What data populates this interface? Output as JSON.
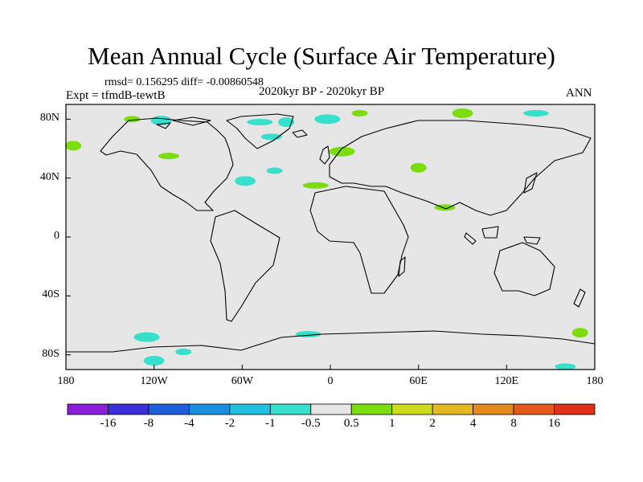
{
  "header": {
    "title": "Mean Annual Cycle (Surface Air Temperature)",
    "stats": "rmsd= 0.156295 diff= -0.00860548",
    "expt": "Expt = tfmdB-tewtB",
    "period": "2020kyr BP - 2020kyr BP",
    "season": "ANN"
  },
  "chart_data": {
    "type": "heatmap",
    "title": "Mean Annual Cycle (Surface Air Temperature)",
    "subtitle": "2020kyr BP - 2020kyr BP",
    "projection": "cylindrical equidistant world map with coastlines",
    "x_range": [
      -180,
      180
    ],
    "y_range": [
      -90,
      90
    ],
    "x_ticks": [
      {
        "value": -180,
        "label": "180"
      },
      {
        "value": -120,
        "label": "120W"
      },
      {
        "value": -60,
        "label": "60W"
      },
      {
        "value": 0,
        "label": "0"
      },
      {
        "value": 60,
        "label": "60E"
      },
      {
        "value": 120,
        "label": "120E"
      },
      {
        "value": 180,
        "label": "180"
      }
    ],
    "y_ticks": [
      {
        "value": 80,
        "label": "80N"
      },
      {
        "value": 40,
        "label": "40N"
      },
      {
        "value": 0,
        "label": "0"
      },
      {
        "value": -40,
        "label": "40S"
      },
      {
        "value": -80,
        "label": "80S"
      }
    ],
    "colorbar": {
      "levels": [
        "-16",
        "-8",
        "-4",
        "-2",
        "-1",
        "-0.5",
        "0.5",
        "1",
        "2",
        "4",
        "8",
        "16"
      ],
      "colors": [
        "#8a1fd8",
        "#3a2ed6",
        "#1f5fdc",
        "#1a8fe0",
        "#22c0e0",
        "#36e0cc",
        "#e6e6e6",
        "#7cdc10",
        "#ccdc1a",
        "#e4b820",
        "#e48a1a",
        "#e35a1a",
        "#e0301a"
      ]
    },
    "background_class": "-0.5 to 0.5",
    "anomaly_patches": [
      {
        "lon": -135,
        "lat": 80,
        "class": "1 to 2",
        "color": "#7cdc10"
      },
      {
        "lon": -115,
        "lat": 79,
        "class": "-1 to -0.5",
        "color": "#36e0cc"
      },
      {
        "lon": -48,
        "lat": 78,
        "class": "-1 to -0.5",
        "color": "#36e0cc"
      },
      {
        "lon": -30,
        "lat": 78,
        "class": "-1 to -0.5",
        "color": "#36e0cc"
      },
      {
        "lon": -40,
        "lat": 68,
        "class": "-1 to -0.5",
        "color": "#36e0cc"
      },
      {
        "lon": -2,
        "lat": 80,
        "class": "-1 to -0.5",
        "color": "#36e0cc"
      },
      {
        "lon": 20,
        "lat": 84,
        "class": "1 to 2",
        "color": "#7cdc10"
      },
      {
        "lon": 90,
        "lat": 84,
        "class": "1 to 2",
        "color": "#7cdc10"
      },
      {
        "lon": 140,
        "lat": 84,
        "class": "-1 to -0.5",
        "color": "#36e0cc"
      },
      {
        "lon": -175,
        "lat": 62,
        "class": "1 to 2",
        "color": "#7cdc10"
      },
      {
        "lon": -110,
        "lat": 55,
        "class": "1 to 2",
        "color": "#7cdc10"
      },
      {
        "lon": 8,
        "lat": 58,
        "class": "1 to 2",
        "color": "#7cdc10"
      },
      {
        "lon": -38,
        "lat": 45,
        "class": "-1 to -0.5",
        "color": "#36e0cc"
      },
      {
        "lon": -58,
        "lat": 38,
        "class": "-1 to -0.5",
        "color": "#36e0cc"
      },
      {
        "lon": -10,
        "lat": 35,
        "class": "1 to 2",
        "color": "#7cdc10"
      },
      {
        "lon": 60,
        "lat": 47,
        "class": "1 to 2",
        "color": "#7cdc10"
      },
      {
        "lon": 78,
        "lat": 20,
        "class": "1 to 2",
        "color": "#7cdc10"
      },
      {
        "lon": -125,
        "lat": -68,
        "class": "-1 to -0.5",
        "color": "#36e0cc"
      },
      {
        "lon": -100,
        "lat": -78,
        "class": "-1 to -0.5",
        "color": "#36e0cc"
      },
      {
        "lon": -120,
        "lat": -84,
        "class": "-1 to -0.5",
        "color": "#36e0cc"
      },
      {
        "lon": -15,
        "lat": -66,
        "class": "-1 to -0.5",
        "color": "#36e0cc"
      },
      {
        "lon": 170,
        "lat": -65,
        "class": "1 to 2",
        "color": "#7cdc10"
      },
      {
        "lon": 160,
        "lat": -88,
        "class": "-1 to -0.5",
        "color": "#36e0cc"
      }
    ]
  }
}
